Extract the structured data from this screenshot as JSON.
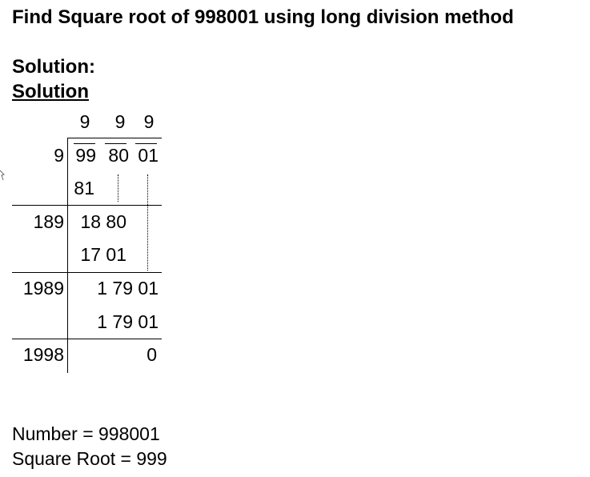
{
  "page": {
    "title": "Find Square root of 998001 using long division method",
    "solution_label": "Solution:",
    "solution_heading": "Solution"
  },
  "long_division": {
    "quotient": [
      "9",
      "9",
      "9"
    ],
    "dividend_pairs": [
      "99",
      "80",
      "01"
    ],
    "divisors": [
      "9",
      "189",
      "1989",
      "1998"
    ],
    "subtractions": [
      "81",
      "17 01",
      "1 79 01"
    ],
    "remainders_brought_down": [
      "18 80",
      "1 79 01"
    ],
    "final_remainder": "0"
  },
  "result": {
    "number_line": "Number = 998001",
    "root_line": "Square Root = 999"
  }
}
